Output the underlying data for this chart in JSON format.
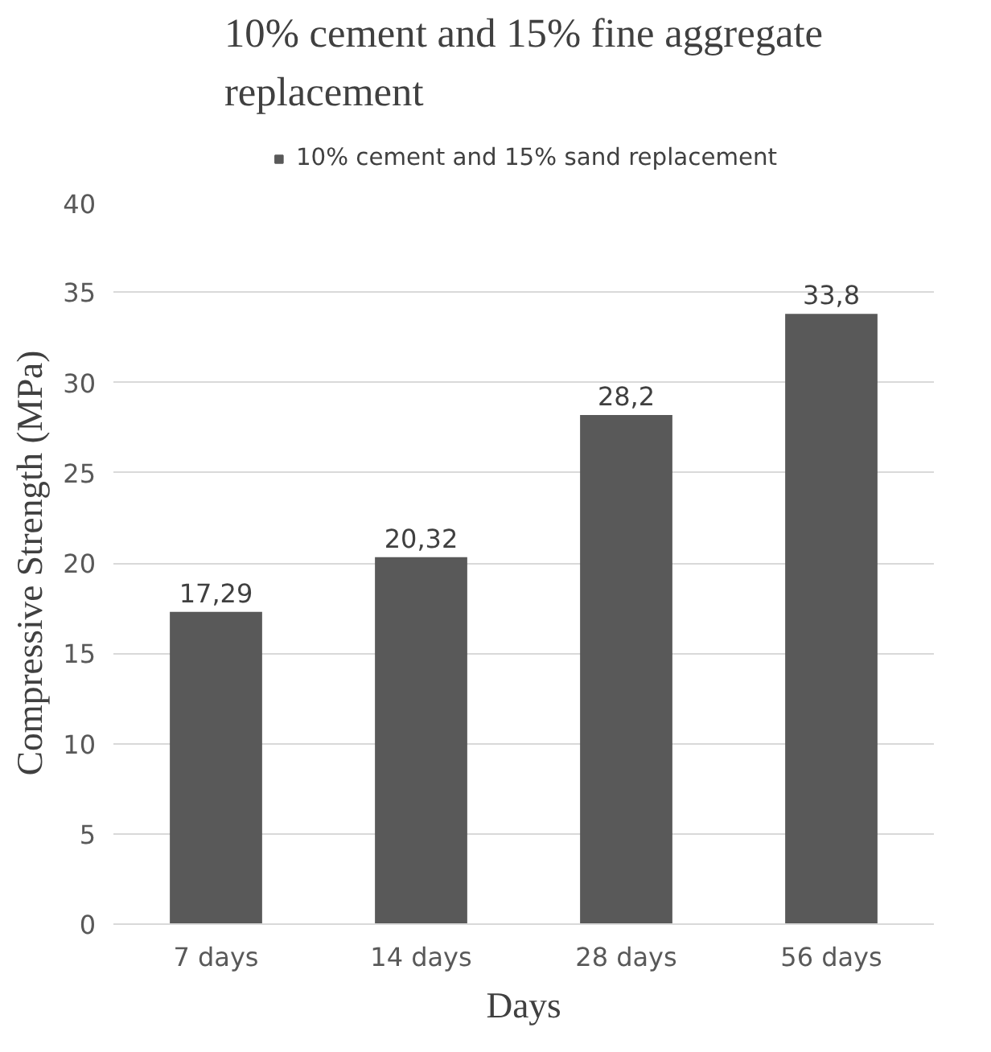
{
  "chart_data": {
    "type": "bar",
    "title": "10% cement and 15% fine aggregate replacement",
    "xlabel": "Days",
    "ylabel": "Compressive Strength (MPa)",
    "categories": [
      "7 days",
      "14 days",
      "28 days",
      "56 days"
    ],
    "series": [
      {
        "name": "10% cement and 15% sand replacement",
        "color": "#595959",
        "values": [
          17.29,
          20.32,
          28.2,
          33.8
        ],
        "value_labels": [
          "17,29",
          "20,32",
          "28,2",
          "33,8"
        ]
      }
    ],
    "ylim": [
      0,
      40
    ],
    "yticks": [
      0,
      5,
      10,
      15,
      20,
      25,
      30,
      35,
      40
    ],
    "grid": "y",
    "legend": "top"
  }
}
